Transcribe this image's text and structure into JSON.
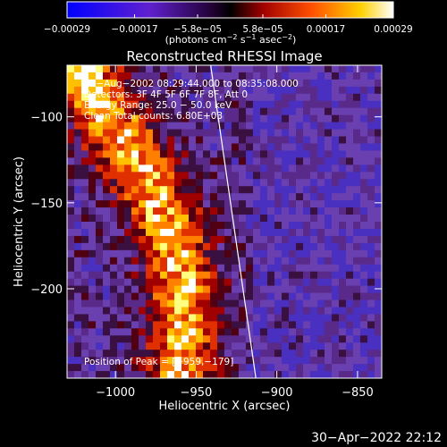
{
  "chart_data": {
    "type": "heatmap",
    "title": "Reconstructed RHESSI Image",
    "xlabel": "Heliocentric X (arcsec)",
    "ylabel": "Heliocentric Y (arcsec)",
    "x_ticks": [
      "−1000",
      "−950",
      "−900",
      "−850"
    ],
    "x_tick_values": [
      -1000,
      -950,
      -900,
      -850
    ],
    "y_ticks": [
      "−100",
      "−150",
      "−200"
    ],
    "y_tick_values": [
      -100,
      -150,
      -200
    ],
    "xlim": [
      -1030,
      -835
    ],
    "ylim": [
      -252,
      -70
    ],
    "colorbar": {
      "ticks": [
        "−0.00029",
        "−0.00017",
        "−5.8e−05",
        "5.8e−05",
        "0.00017",
        "0.00029"
      ],
      "tick_values": [
        -0.00029,
        -0.00017,
        -5.8e-05,
        5.8e-05,
        0.00017,
        0.00029
      ],
      "range": [
        -0.00029,
        0.00029
      ],
      "unit_parts": [
        "(photons cm",
        "−2",
        " s",
        "−1",
        " asec",
        "−2",
        ")"
      ]
    },
    "annotations": {
      "time_range": "12−Aug−2002 08:29:44.000 to 08:35:08.000",
      "detectors": "Detectors: 3F 4F 5F 6F 7F 8F, Att 0",
      "energy": "Energy Range: 25.0 − 50.0 keV",
      "clean": "Clean    Total counts: 6.80E+03",
      "peak": "Position of Peak = [−959,−179]"
    },
    "limb_line": [
      [
        -941,
        -70
      ],
      [
        -913,
        -252
      ]
    ],
    "colors": {
      "low": "#0000ff",
      "mid_low": "#7030b0",
      "mid": "#000000",
      "warm": "#c00000",
      "orange": "#ff8000",
      "high": "#ffff80",
      "max": "#ffffff"
    }
  },
  "footer": {
    "date": "30−Apr−2022 22:12"
  }
}
